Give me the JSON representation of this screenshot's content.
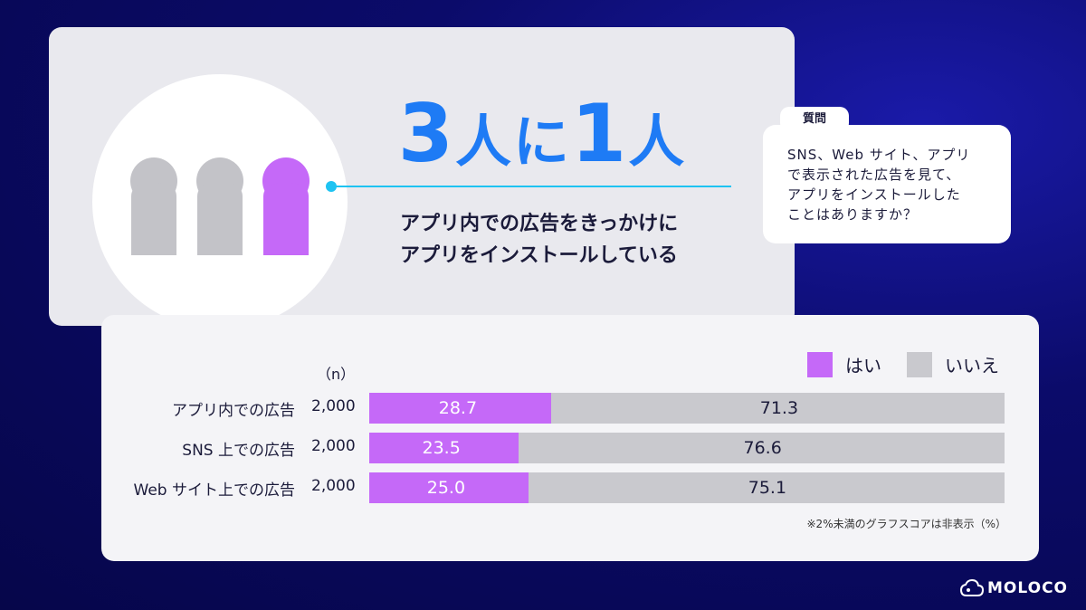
{
  "headline": {
    "num1": "3",
    "mid": "人に",
    "num2": "1",
    "end": "人"
  },
  "subtitle": "アプリ内での広告をきっかけに\nアプリをインストールしている",
  "question": {
    "tag": "質問",
    "text": "SNS、Web サイト、アプリ\nで表示された広告を見て、\nアプリをインストールした\nことはありますか？"
  },
  "colors": {
    "yes": "#c569f8",
    "no": "#c9c9ce",
    "accent": "#1e7bf5",
    "person_gray": "#c3c3c8"
  },
  "icons": [
    "person-icon-gray",
    "person-icon-gray",
    "person-icon-purple"
  ],
  "chart_data": {
    "type": "bar",
    "orientation": "horizontal-stacked",
    "n_header": "（n）",
    "categories": [
      "アプリ内での広告",
      "SNS 上での広告",
      "Web サイト上での広告"
    ],
    "n": [
      "2,000",
      "2,000",
      "2,000"
    ],
    "series": [
      {
        "name": "はい",
        "values": [
          28.7,
          23.5,
          25.0
        ]
      },
      {
        "name": "いいえ",
        "values": [
          71.3,
          76.6,
          75.1
        ]
      }
    ],
    "value_labels": {
      "yes": [
        "28.7",
        "23.5",
        "25.0"
      ],
      "no": [
        "71.3",
        "76.6",
        "75.1"
      ]
    },
    "legend_position": "top-right",
    "note": "※2%未満のグラフスコアは非表示（%）"
  },
  "brand": "MOLOCO"
}
